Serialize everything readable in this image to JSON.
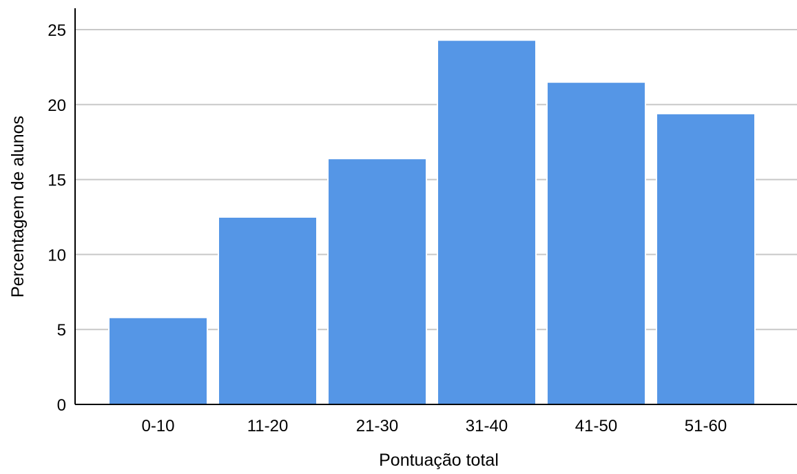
{
  "chart_data": {
    "type": "bar",
    "title": "",
    "xlabel": "Pontuação total",
    "ylabel": "Percentagem de alunos",
    "categories": [
      "0-10",
      "11-20",
      "21-30",
      "31-40",
      "41-50",
      "51-60"
    ],
    "values": [
      5.8,
      12.5,
      16.4,
      24.3,
      21.5,
      19.4
    ],
    "ylim": [
      0,
      25
    ],
    "yticks": [
      0,
      5,
      10,
      15,
      20,
      25
    ],
    "grid": "horizontal",
    "legend": "none",
    "colors": {
      "bar": "#5596E6",
      "grid": "#c8c8c8",
      "axis": "#000000",
      "background": "#ffffff"
    }
  }
}
